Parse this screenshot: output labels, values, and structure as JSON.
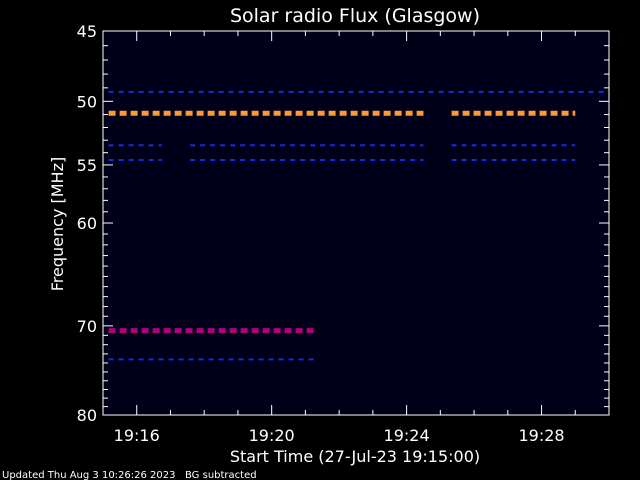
{
  "chart_data": {
    "type": "heatmap",
    "title": "Solar radio Flux (Glasgow)",
    "xlabel": "Start Time (27-Jul-23 19:15:00)",
    "ylabel": "Frequency [MHz]",
    "x_range": [
      "19:15:00",
      "19:30:00"
    ],
    "x_ticks": [
      "19:16",
      "19:20",
      "19:24",
      "19:28"
    ],
    "y_range": [
      45,
      80
    ],
    "y_scale": "log",
    "y_ticks": [
      45,
      50,
      55,
      60,
      70,
      80
    ],
    "y_tick_labels": [
      "45",
      "50",
      "55",
      "60",
      "70",
      "80"
    ],
    "background_color": "#00001a",
    "bands": [
      {
        "freq_mhz": 49.3,
        "color": "#1a2bd6",
        "segments": [
          [
            "19:15:10",
            "19:29:55"
          ]
        ]
      },
      {
        "freq_mhz": 50.9,
        "color": "#ff9933",
        "segments": [
          [
            "19:15:10",
            "19:24:30"
          ],
          [
            "19:25:20",
            "19:29:00"
          ]
        ]
      },
      {
        "freq_mhz": 53.4,
        "color": "#1a2bd6",
        "segments": [
          [
            "19:15:10",
            "19:16:45"
          ],
          [
            "19:17:35",
            "19:24:30"
          ],
          [
            "19:25:20",
            "19:29:00"
          ]
        ]
      },
      {
        "freq_mhz": 54.6,
        "color": "#1a2bd6",
        "segments": [
          [
            "19:15:10",
            "19:16:45"
          ],
          [
            "19:17:35",
            "19:24:30"
          ],
          [
            "19:25:20",
            "19:29:00"
          ]
        ]
      },
      {
        "freq_mhz": 70.5,
        "color": "#b0007a",
        "segments": [
          [
            "19:15:10",
            "19:21:20"
          ]
        ]
      },
      {
        "freq_mhz": 73.6,
        "color": "#1a2bd6",
        "segments": [
          [
            "19:15:10",
            "19:21:20"
          ]
        ]
      }
    ]
  },
  "footer": {
    "updated": "Updated Thu Aug  3 10:26:26 2023",
    "note": "BG subtracted"
  },
  "colors": {
    "text": "#ffffff",
    "axes": "#ffffff"
  }
}
